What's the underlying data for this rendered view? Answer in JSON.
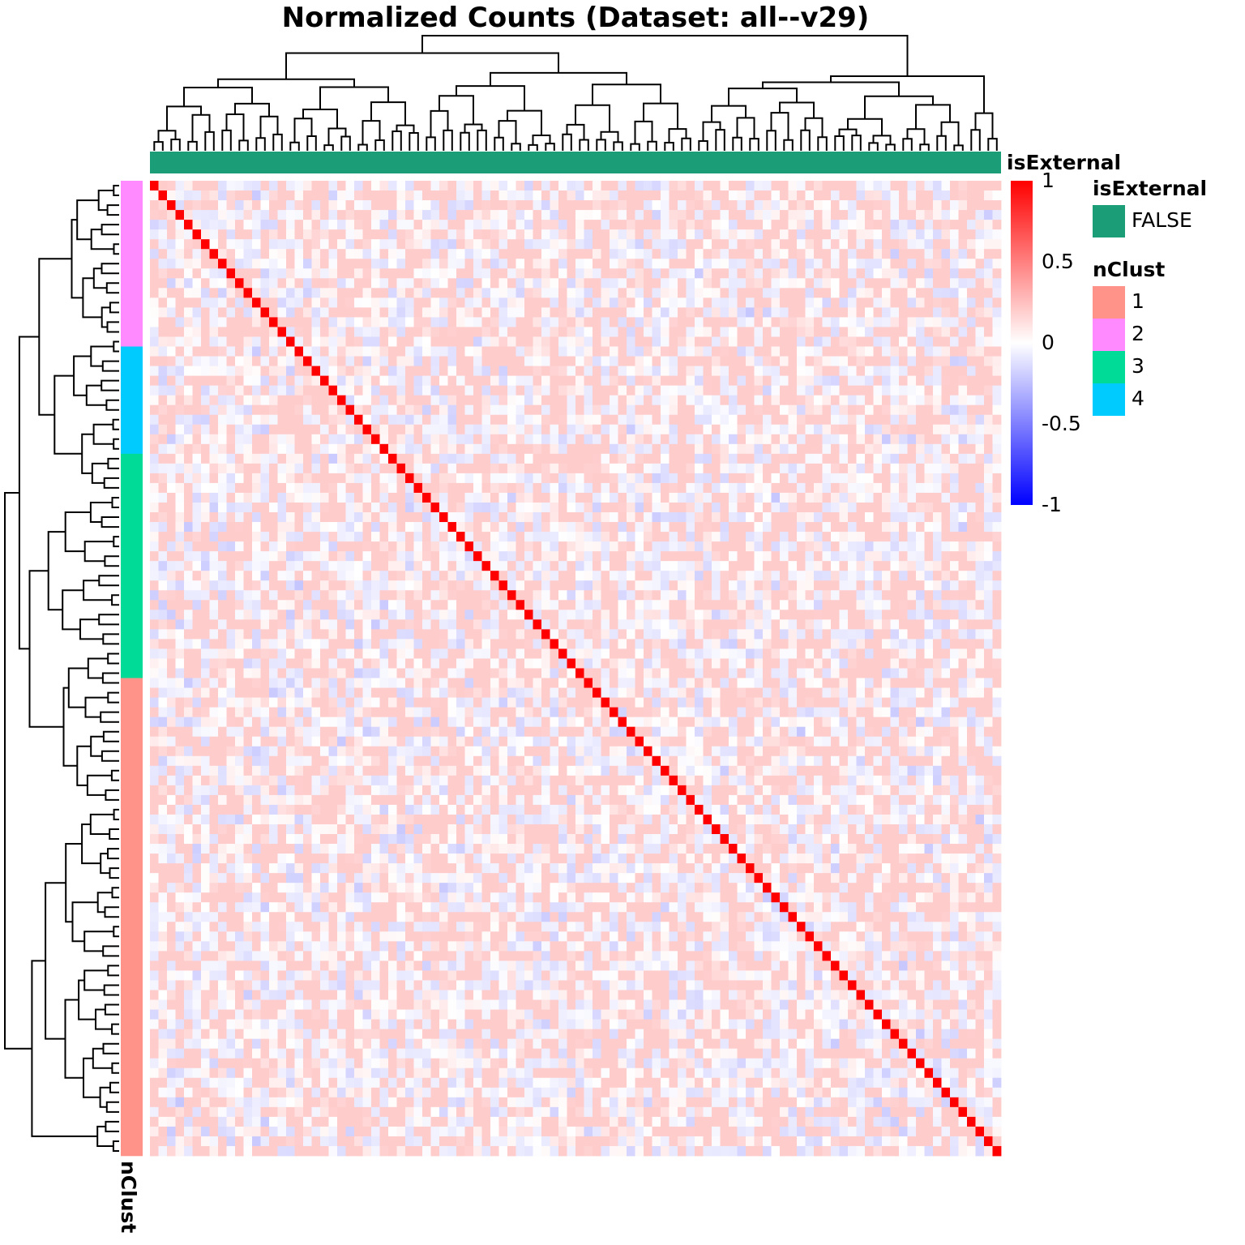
{
  "chart_data": {
    "type": "heatmap",
    "title": "Normalized Counts (Dataset: all--v29)",
    "n": 100,
    "value_range": [
      -1,
      1
    ],
    "diagonal_value": 1,
    "offdiag_typical_range": [
      -0.35,
      0.2
    ],
    "colorbar": {
      "ticks": [
        "1",
        "0.5",
        "0",
        "-0.5",
        "-1"
      ],
      "colors": {
        "low": "#0000FF",
        "mid": "#FFFFFF",
        "high": "#FF0000"
      }
    },
    "column_annotation": {
      "name": "isExternal",
      "value": "FALSE",
      "color": "#1B9E77"
    },
    "row_annotation": {
      "name": "nClust",
      "segments_top_to_bottom": [
        {
          "cluster": "2",
          "count": 17
        },
        {
          "cluster": "4",
          "count": 11
        },
        {
          "cluster": "3",
          "count": 23
        },
        {
          "cluster": "1",
          "count": 49
        }
      ]
    },
    "legends": [
      {
        "title": "isExternal",
        "items": [
          {
            "label": "FALSE",
            "color": "#1B9E77"
          }
        ]
      },
      {
        "title": "nClust",
        "items": [
          {
            "label": "1",
            "color": "#FF9289"
          },
          {
            "label": "2",
            "color": "#FF8AFF"
          },
          {
            "label": "3",
            "color": "#00DB98"
          },
          {
            "label": "4",
            "color": "#00CBFF"
          }
        ]
      }
    ]
  }
}
